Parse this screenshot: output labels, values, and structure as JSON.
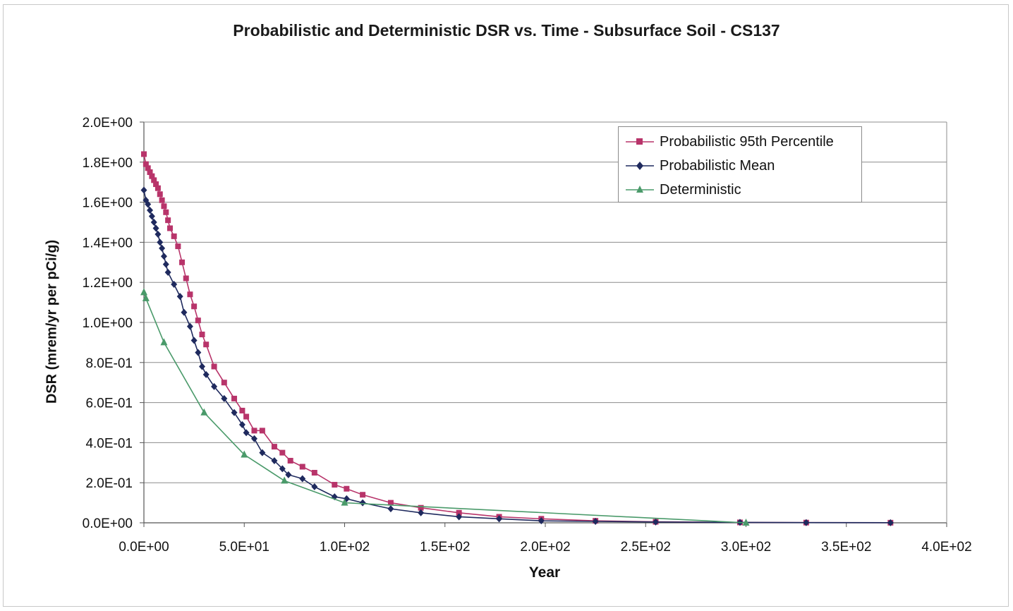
{
  "chart_data": {
    "type": "line",
    "title": "Probabilistic and Deterministic DSR vs. Time - Subsurface Soil - CS137",
    "xlabel": "Year",
    "ylabel": "DSR (mrem/yr per pCi/g)",
    "xlim": [
      0,
      400
    ],
    "ylim": [
      0,
      2.0
    ],
    "x_ticks": [
      0,
      50,
      100,
      150,
      200,
      250,
      300,
      350,
      400
    ],
    "x_tick_labels": [
      "0.0E+00",
      "5.0E+01",
      "1.0E+02",
      "1.5E+02",
      "2.0E+02",
      "2.5E+02",
      "3.0E+02",
      "3.5E+02",
      "4.0E+02"
    ],
    "y_ticks": [
      0,
      0.2,
      0.4,
      0.6,
      0.8,
      1.0,
      1.2,
      1.4,
      1.6,
      1.8,
      2.0
    ],
    "y_tick_labels": [
      "0.0E+00",
      "2.0E-01",
      "4.0E-01",
      "6.0E-01",
      "8.0E-01",
      "1.0E+00",
      "1.2E+00",
      "1.4E+00",
      "1.6E+00",
      "1.8E+00",
      "2.0E+00"
    ],
    "grid": "horizontal",
    "legend_position": "top-right",
    "series": [
      {
        "name": "Probabilistic 95th Percentile",
        "color": "#b8346a",
        "marker": "square",
        "x": [
          0,
          1,
          2,
          3,
          4,
          5,
          6,
          7,
          8,
          9,
          10,
          11,
          12,
          13,
          15,
          17,
          19,
          21,
          23,
          25,
          27,
          29,
          31,
          35,
          40,
          45,
          49,
          51,
          55,
          59,
          65,
          69,
          73,
          79,
          85,
          95,
          101,
          109,
          123,
          138,
          157,
          177,
          198,
          225,
          255,
          297,
          330,
          372
        ],
        "y": [
          1.84,
          1.79,
          1.77,
          1.75,
          1.73,
          1.71,
          1.69,
          1.67,
          1.64,
          1.61,
          1.58,
          1.55,
          1.51,
          1.47,
          1.43,
          1.38,
          1.3,
          1.22,
          1.14,
          1.08,
          1.01,
          0.94,
          0.89,
          0.78,
          0.7,
          0.62,
          0.56,
          0.53,
          0.46,
          0.46,
          0.38,
          0.35,
          0.31,
          0.28,
          0.25,
          0.19,
          0.17,
          0.14,
          0.1,
          0.075,
          0.05,
          0.03,
          0.02,
          0.01,
          0.005,
          0.002,
          0.001,
          0.0005
        ]
      },
      {
        "name": "Probabilistic Mean",
        "color": "#1f2a5e",
        "marker": "diamond",
        "x": [
          0,
          1,
          2,
          3,
          4,
          5,
          6,
          7,
          8,
          9,
          10,
          11,
          12,
          15,
          18,
          20,
          23,
          25,
          27,
          29,
          31,
          35,
          40,
          45,
          49,
          51,
          55,
          59,
          65,
          69,
          72,
          79,
          85,
          95,
          101,
          109,
          123,
          138,
          157,
          177,
          198,
          225,
          255,
          297,
          330,
          372
        ],
        "y": [
          1.66,
          1.61,
          1.59,
          1.56,
          1.53,
          1.5,
          1.47,
          1.44,
          1.4,
          1.37,
          1.33,
          1.29,
          1.25,
          1.19,
          1.13,
          1.05,
          0.98,
          0.91,
          0.85,
          0.78,
          0.74,
          0.68,
          0.62,
          0.55,
          0.49,
          0.45,
          0.42,
          0.35,
          0.31,
          0.27,
          0.24,
          0.22,
          0.18,
          0.13,
          0.12,
          0.1,
          0.07,
          0.05,
          0.03,
          0.02,
          0.01,
          0.007,
          0.004,
          0.002,
          0.001,
          0.0005
        ]
      },
      {
        "name": "Deterministic",
        "color": "#4a9a6a",
        "marker": "triangle",
        "x": [
          0,
          1,
          10,
          30,
          50,
          70,
          100,
          300
        ],
        "y": [
          1.15,
          1.12,
          0.9,
          0.55,
          0.34,
          0.21,
          0.1,
          0.0
        ]
      }
    ]
  }
}
